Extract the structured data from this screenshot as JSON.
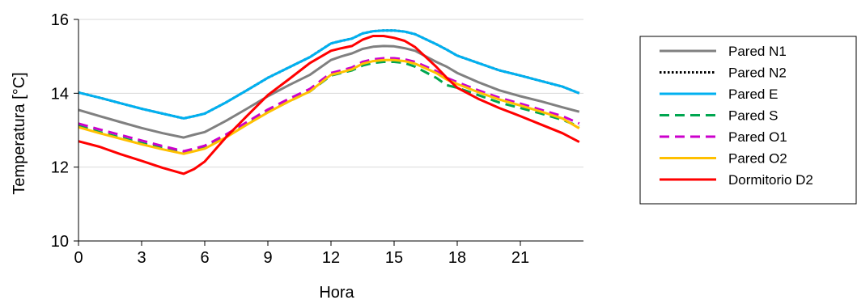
{
  "chart_data": {
    "type": "line",
    "xlabel": "Hora",
    "ylabel": "Temperatura [°C]",
    "xlim": [
      0,
      24
    ],
    "ylim": [
      10,
      16
    ],
    "xticks": [
      0,
      3,
      6,
      9,
      12,
      15,
      18,
      21
    ],
    "yticks": [
      10,
      12,
      14,
      16
    ],
    "grid": "horizontal",
    "legend": "right",
    "x": [
      0,
      1,
      2,
      3,
      4,
      5,
      5.5,
      6,
      7,
      8,
      9,
      10,
      11,
      12,
      12.5,
      13,
      13.5,
      14,
      14.5,
      15,
      15.5,
      16,
      17,
      17.5,
      18,
      19,
      20,
      21,
      22,
      23,
      23.8
    ],
    "series": [
      {
        "name": "Pared N1",
        "color": "#808080",
        "dash": "solid",
        "values": [
          13.55,
          13.38,
          13.22,
          13.06,
          12.92,
          12.8,
          12.88,
          12.95,
          13.25,
          13.58,
          13.92,
          14.22,
          14.5,
          14.9,
          15.0,
          15.08,
          15.2,
          15.26,
          15.28,
          15.27,
          15.22,
          15.15,
          14.85,
          14.72,
          14.55,
          14.3,
          14.08,
          13.92,
          13.78,
          13.62,
          13.5
        ]
      },
      {
        "name": "Pared N2",
        "color": "#000000",
        "dash": "dotted",
        "values": [
          14.02,
          13.88,
          13.73,
          13.58,
          13.45,
          13.32,
          13.38,
          13.45,
          13.75,
          14.08,
          14.42,
          14.7,
          14.98,
          15.35,
          15.42,
          15.48,
          15.62,
          15.68,
          15.7,
          15.7,
          15.67,
          15.6,
          15.33,
          15.18,
          15.02,
          14.82,
          14.62,
          14.48,
          14.33,
          14.18,
          14.0
        ]
      },
      {
        "name": "Pared E",
        "color": "#00B0F0",
        "dash": "solid",
        "values": [
          14.02,
          13.88,
          13.73,
          13.58,
          13.45,
          13.32,
          13.38,
          13.45,
          13.75,
          14.08,
          14.42,
          14.7,
          14.98,
          15.35,
          15.42,
          15.48,
          15.62,
          15.68,
          15.7,
          15.7,
          15.67,
          15.6,
          15.33,
          15.18,
          15.02,
          14.82,
          14.62,
          14.48,
          14.33,
          14.18,
          14.0
        ]
      },
      {
        "name": "Pared S",
        "color": "#00A650",
        "dash": "dashed",
        "values": [
          13.12,
          12.95,
          12.8,
          12.65,
          12.52,
          12.4,
          12.46,
          12.52,
          12.82,
          13.18,
          13.5,
          13.78,
          14.05,
          14.48,
          14.55,
          14.62,
          14.75,
          14.82,
          14.85,
          14.85,
          14.82,
          14.72,
          14.42,
          14.22,
          14.15,
          13.95,
          13.75,
          13.6,
          13.45,
          13.28,
          13.1
        ]
      },
      {
        "name": "Pared O1",
        "color": "#CC00CC",
        "dash": "dashed",
        "values": [
          13.18,
          13.02,
          12.87,
          12.72,
          12.57,
          12.43,
          12.5,
          12.58,
          12.88,
          13.22,
          13.56,
          13.85,
          14.12,
          14.55,
          14.62,
          14.7,
          14.85,
          14.92,
          14.95,
          14.95,
          14.92,
          14.85,
          14.6,
          14.42,
          14.3,
          14.08,
          13.88,
          13.72,
          13.55,
          13.38,
          13.18
        ]
      },
      {
        "name": "Pared O2",
        "color": "#FFC000",
        "dash": "solid",
        "values": [
          13.08,
          12.92,
          12.77,
          12.62,
          12.48,
          12.36,
          12.43,
          12.5,
          12.8,
          13.15,
          13.48,
          13.78,
          14.05,
          14.5,
          14.57,
          14.65,
          14.8,
          14.87,
          14.9,
          14.9,
          14.87,
          14.8,
          14.55,
          14.37,
          14.25,
          14.03,
          13.83,
          13.67,
          13.5,
          13.32,
          13.05
        ]
      },
      {
        "name": "Dormitorio D2",
        "color": "#FF0000",
        "dash": "solid",
        "values": [
          12.7,
          12.55,
          12.35,
          12.17,
          11.98,
          11.82,
          11.95,
          12.15,
          12.8,
          13.38,
          13.95,
          14.38,
          14.82,
          15.15,
          15.22,
          15.28,
          15.45,
          15.55,
          15.55,
          15.5,
          15.42,
          15.25,
          14.72,
          14.42,
          14.15,
          13.85,
          13.6,
          13.38,
          13.15,
          12.92,
          12.68
        ]
      }
    ]
  }
}
